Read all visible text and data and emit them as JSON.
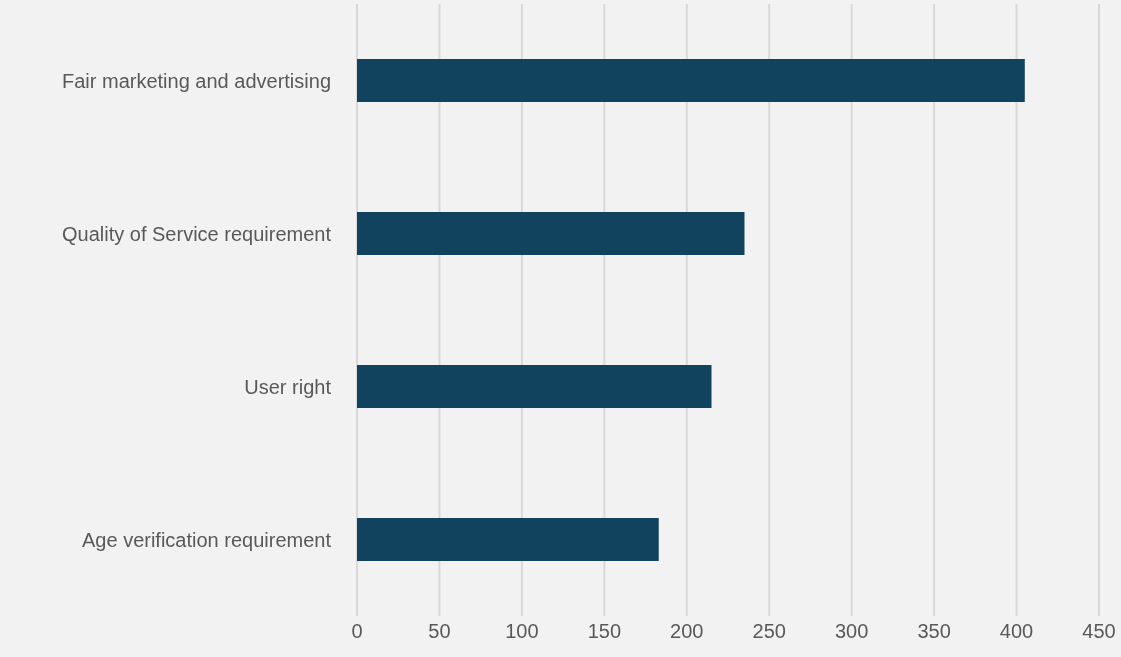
{
  "chart_data": {
    "type": "bar",
    "orientation": "horizontal",
    "categories": [
      "Fair marketing and advertising",
      "Quality of Service requirement",
      "User right",
      "Age verification requirement"
    ],
    "values": [
      405,
      235,
      215,
      183
    ],
    "color": "#12435e",
    "xlim": [
      0,
      450
    ],
    "xticks": [
      0,
      50,
      100,
      150,
      200,
      250,
      300,
      350,
      400,
      450
    ],
    "grid": "x"
  }
}
